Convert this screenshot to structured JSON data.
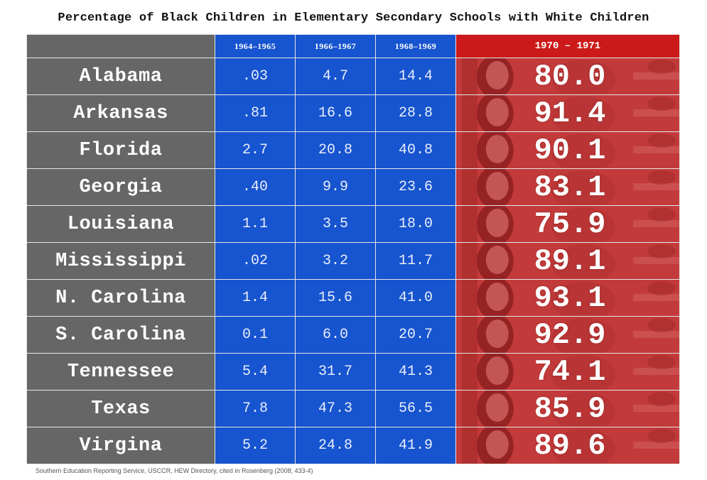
{
  "title": "Percentage of Black Children in Elementary Secondary Schools with White Children",
  "source": "Southern Education Reporting Service, USCCR, HEW Directory, cited in Rosenberg (2008; 433-4)",
  "colors": {
    "state_cells": "#666666",
    "early_years": "#1754cf",
    "highlight_year": "#cc1a1a"
  },
  "chart_data": {
    "type": "table",
    "title": "Percentage of Black Children in Elementary Secondary Schools with White Children",
    "columns": [
      "1964–1965",
      "1966–1967",
      "1968–1969",
      "1970 – 1971"
    ],
    "rows": [
      {
        "state": "Alabama",
        "values": [
          ".03",
          "4.7",
          "14.4",
          "80.0"
        ]
      },
      {
        "state": "Arkansas",
        "values": [
          ".81",
          "16.6",
          "28.8",
          "91.4"
        ]
      },
      {
        "state": "Florida",
        "values": [
          "2.7",
          "20.8",
          "40.8",
          "90.1"
        ]
      },
      {
        "state": "Georgia",
        "values": [
          ".40",
          "9.9",
          "23.6",
          "83.1"
        ]
      },
      {
        "state": "Louisiana",
        "values": [
          "1.1",
          "3.5",
          "18.0",
          "75.9"
        ]
      },
      {
        "state": "Mississippi",
        "values": [
          ".02",
          "3.2",
          "11.7",
          "89.1"
        ]
      },
      {
        "state": "N. Carolina",
        "values": [
          "1.4",
          "15.6",
          "41.0",
          "93.1"
        ]
      },
      {
        "state": "S. Carolina",
        "values": [
          "0.1",
          "6.0",
          "20.7",
          "92.9"
        ]
      },
      {
        "state": "Tennessee",
        "values": [
          "5.4",
          "31.7",
          "41.3",
          "74.1"
        ]
      },
      {
        "state": "Texas",
        "values": [
          "7.8",
          "47.3",
          "56.5",
          "85.9"
        ]
      },
      {
        "state": "Virgina",
        "values": [
          "5.2",
          "24.8",
          "41.9",
          "89.6"
        ]
      }
    ]
  }
}
